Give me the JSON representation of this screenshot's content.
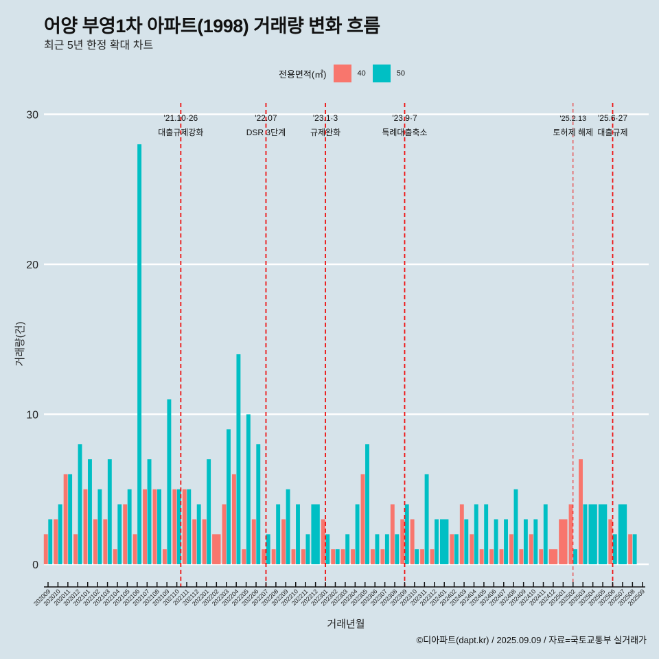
{
  "header": {
    "title": "어양 부영1차 아파트(1998) 거래량 변화 흐름",
    "subtitle": "최근 5년 한정 확대 차트"
  },
  "legend": {
    "title": "전용면적(㎡)",
    "items": [
      {
        "label": "40",
        "color": "#F8766D"
      },
      {
        "label": "50",
        "color": "#00BFC4"
      }
    ]
  },
  "caption": "©디아파트(dapt.kr) / 2025.09.09 / 자료=국토교통부 실거래가",
  "chart_data": {
    "type": "bar",
    "title": "어양 부영1차 아파트(1998) 거래량 변화 흐름",
    "subtitle": "최근 5년 한정 확대 차트",
    "xlabel": "거래년월",
    "ylabel": "거래량(건)",
    "ylim": [
      0,
      30
    ],
    "yticks": [
      0,
      10,
      20,
      30
    ],
    "grid": "horizontal",
    "legend_position": "top",
    "categories": [
      "202009",
      "202010",
      "202011",
      "202012",
      "202101",
      "202102",
      "202103",
      "202104",
      "202105",
      "202106",
      "202107",
      "202108",
      "202109",
      "202110",
      "202111",
      "202112",
      "202201",
      "202202",
      "202203",
      "202204",
      "202205",
      "202206",
      "202207",
      "202208",
      "202209",
      "202210",
      "202211",
      "202212",
      "202301",
      "202302",
      "202303",
      "202304",
      "202305",
      "202306",
      "202307",
      "202308",
      "202309",
      "202310",
      "202311",
      "202312",
      "202401",
      "202402",
      "202403",
      "202404",
      "202405",
      "202406",
      "202407",
      "202408",
      "202409",
      "202410",
      "202411",
      "202412",
      "202501",
      "202502",
      "202503",
      "202504",
      "202505",
      "202506",
      "202507",
      "202508",
      "202509"
    ],
    "series": [
      {
        "name": "40",
        "color": "#F8766D",
        "values": [
          2,
          3,
          6,
          2,
          5,
          3,
          3,
          1,
          4,
          2,
          5,
          5,
          1,
          5,
          5,
          3,
          3,
          2,
          4,
          6,
          1,
          3,
          1,
          1,
          3,
          1,
          1,
          null,
          3,
          1,
          1,
          1,
          6,
          1,
          1,
          4,
          3,
          3,
          1,
          1,
          null,
          2,
          4,
          2,
          1,
          1,
          1,
          2,
          1,
          2,
          1,
          1,
          3,
          4,
          7,
          null,
          null,
          3,
          null,
          2,
          null
        ]
      },
      {
        "name": "50",
        "color": "#00BFC4",
        "values": [
          3,
          4,
          6,
          8,
          7,
          5,
          7,
          4,
          5,
          28,
          7,
          5,
          11,
          5,
          5,
          4,
          7,
          null,
          9,
          14,
          10,
          8,
          2,
          4,
          5,
          4,
          2,
          4,
          2,
          1,
          2,
          4,
          8,
          2,
          2,
          2,
          4,
          1,
          6,
          3,
          3,
          2,
          3,
          4,
          4,
          3,
          3,
          5,
          3,
          3,
          4,
          null,
          null,
          1,
          4,
          4,
          4,
          2,
          4,
          2,
          null
        ]
      }
    ],
    "annotations": [
      {
        "x": "202110",
        "offset": 0.4,
        "date": "'21.10·26",
        "label": "대출규제강화",
        "style": "dashed"
      },
      {
        "x": "202207",
        "offset": 0,
        "date": "'22.07",
        "label": "DSR 3단계",
        "style": "dashed"
      },
      {
        "x": "202301",
        "offset": 0,
        "date": "'23.1·3",
        "label": "규제완화",
        "style": "dashed"
      },
      {
        "x": "202309",
        "offset": 0,
        "date": "'23.9·7",
        "label": "특례대출축소",
        "style": "dashed"
      },
      {
        "x": "202502",
        "offset": 0,
        "date": "'25.2.13",
        "label": "토허제 해제",
        "style": "thin"
      },
      {
        "x": "202506",
        "offset": 0,
        "date": "'25.6·27",
        "label": "대출규제",
        "style": "dashed"
      }
    ]
  }
}
